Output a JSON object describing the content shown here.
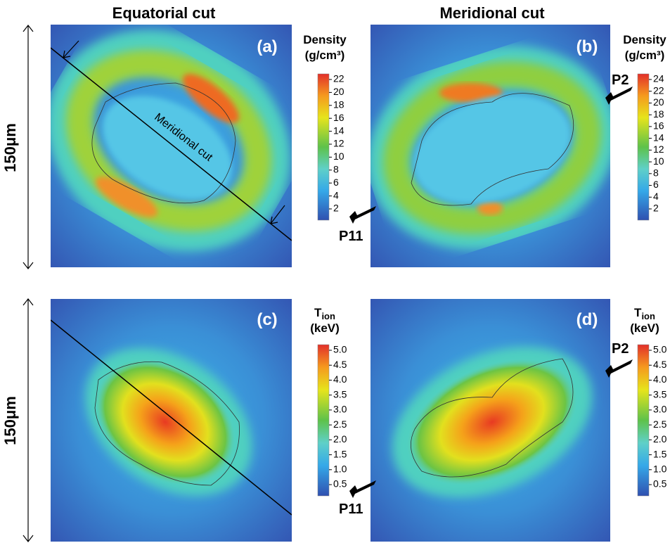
{
  "column_titles": [
    "Equatorial cut",
    "Meridional cut"
  ],
  "scale_labels": [
    "150μm",
    "150μm"
  ],
  "panels": [
    {
      "label": "(a)",
      "annotation": "Meridional cut",
      "colorbar": {
        "title": "Density",
        "unit": "(g/cm³)",
        "ticks": [
          "22",
          "20",
          "18",
          "16",
          "14",
          "12",
          "10",
          "8",
          "6",
          "4",
          "2"
        ]
      }
    },
    {
      "label": "(b)",
      "pointers": [
        "P2",
        "P11"
      ],
      "colorbar": {
        "title": "Density",
        "unit": "(g/cm³)",
        "ticks": [
          "24",
          "22",
          "20",
          "18",
          "16",
          "14",
          "12",
          "10",
          "8",
          "6",
          "4",
          "2"
        ]
      }
    },
    {
      "label": "(c)",
      "colorbar": {
        "title": "T",
        "subscript": "ion",
        "unit": "(keV)",
        "ticks": [
          "5.0",
          "4.5",
          "4.0",
          "3.5",
          "3.0",
          "2.5",
          "2.0",
          "1.5",
          "1.0",
          "0.5"
        ]
      }
    },
    {
      "label": "(d)",
      "pointers": [
        "P2",
        "P11"
      ],
      "colorbar": {
        "title": "T",
        "subscript": "ion",
        "unit": "(keV)",
        "ticks": [
          "5.0",
          "4.5",
          "4.0",
          "3.5",
          "3.0",
          "2.5",
          "2.0",
          "1.5",
          "1.0",
          "0.5"
        ]
      }
    }
  ]
}
